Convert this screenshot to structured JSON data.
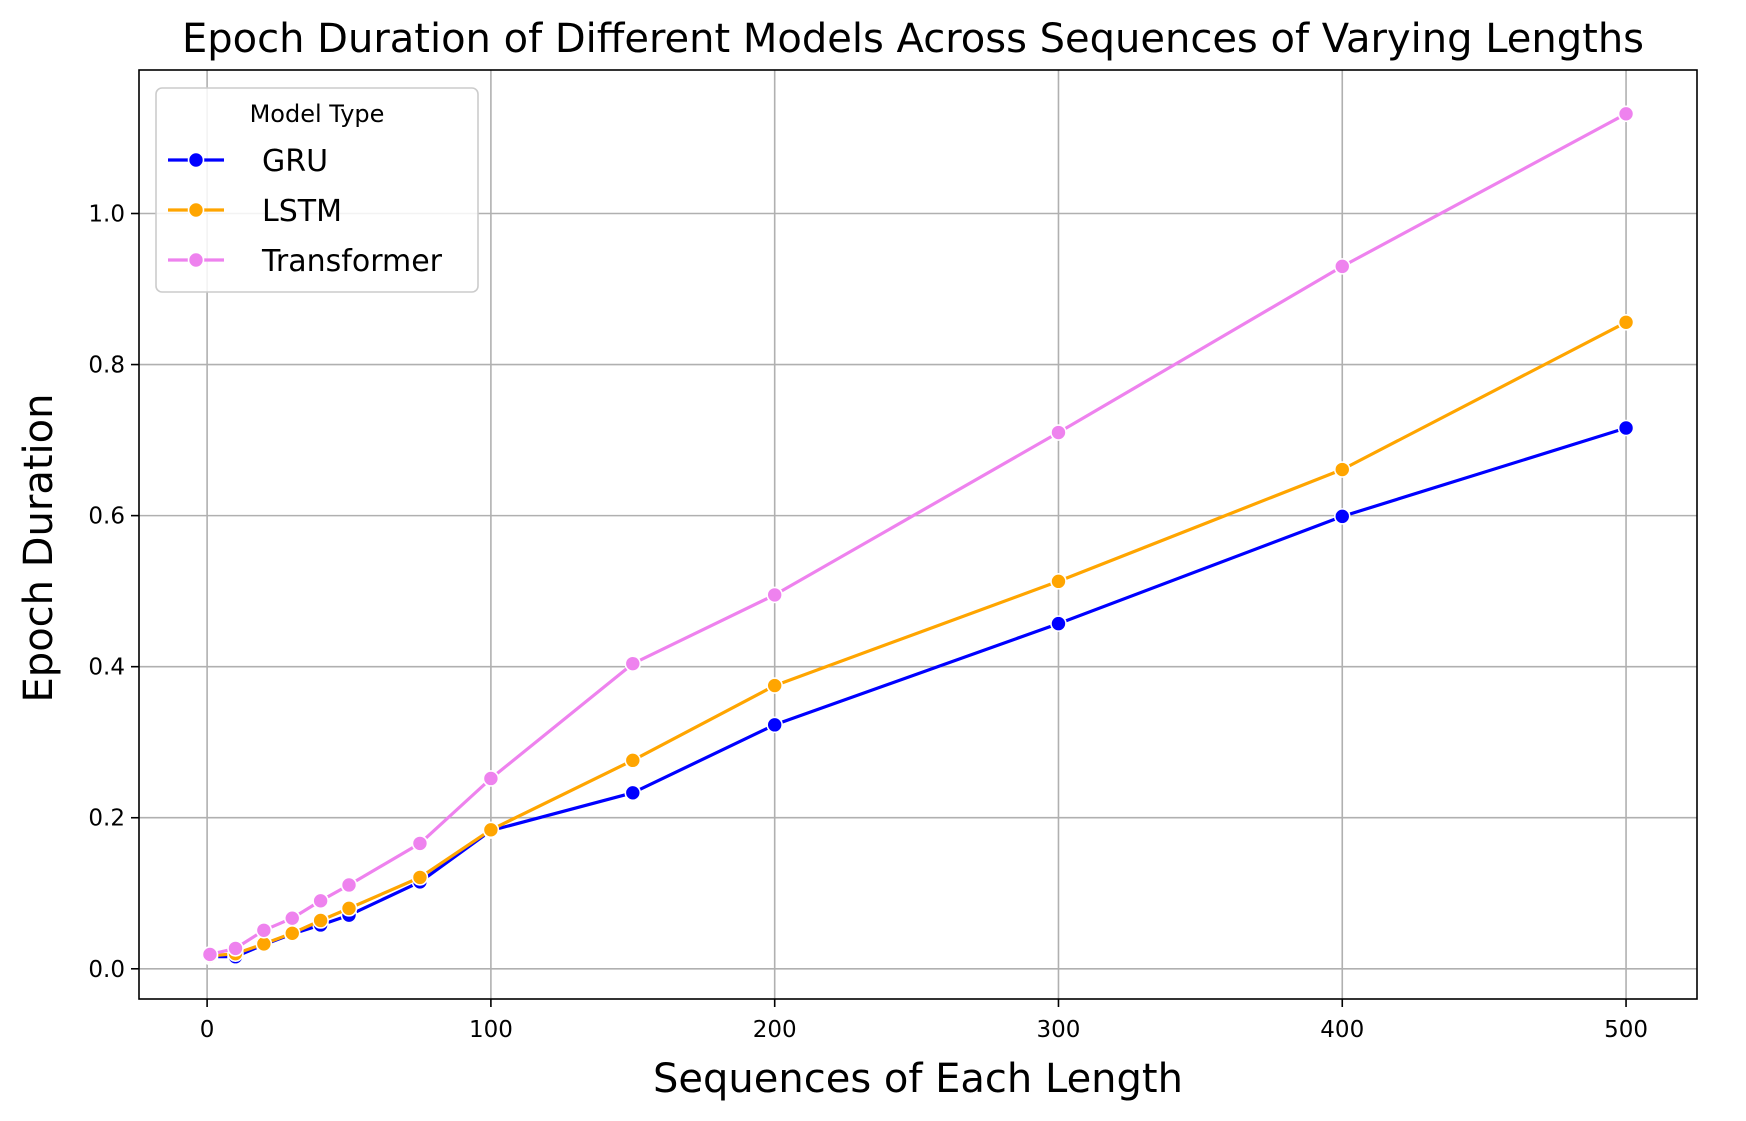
{
  "chart_data": {
    "type": "line",
    "title": "Epoch Duration of Different Models Across Sequences of Varying Lengths",
    "xlabel": "Sequences of Each Length",
    "ylabel": "Epoch Duration",
    "xlim": [
      -24,
      525
    ],
    "ylim": [
      -0.04,
      1.19
    ],
    "xticks": [
      0,
      100,
      200,
      300,
      400,
      500
    ],
    "yticks": [
      0.0,
      0.2,
      0.4,
      0.6,
      0.8,
      1.0
    ],
    "xtick_labels": [
      "0",
      "100",
      "200",
      "300",
      "400",
      "500"
    ],
    "ytick_labels": [
      "0.0",
      "0.2",
      "0.4",
      "0.6",
      "0.8",
      "1.0"
    ],
    "grid": true,
    "x": [
      1,
      10,
      20,
      30,
      40,
      50,
      75,
      100,
      150,
      200,
      300,
      400,
      500
    ],
    "series": [
      {
        "name": "GRU",
        "color": "#0000ff",
        "values": [
          0.016,
          0.016,
          0.032,
          0.046,
          0.058,
          0.071,
          0.115,
          0.183,
          0.233,
          0.323,
          0.457,
          0.599,
          0.716
        ]
      },
      {
        "name": "LSTM",
        "color": "#ffa500",
        "values": [
          0.017,
          0.02,
          0.033,
          0.047,
          0.064,
          0.08,
          0.121,
          0.184,
          0.276,
          0.375,
          0.513,
          0.661,
          0.856
        ]
      },
      {
        "name": "Transformer",
        "color": "#ee82ee",
        "values": [
          0.019,
          0.027,
          0.051,
          0.067,
          0.09,
          0.111,
          0.166,
          0.252,
          0.404,
          0.495,
          0.71,
          0.93,
          1.132
        ]
      }
    ],
    "legend": {
      "title": "Model Type",
      "placement": "upper-left"
    }
  }
}
